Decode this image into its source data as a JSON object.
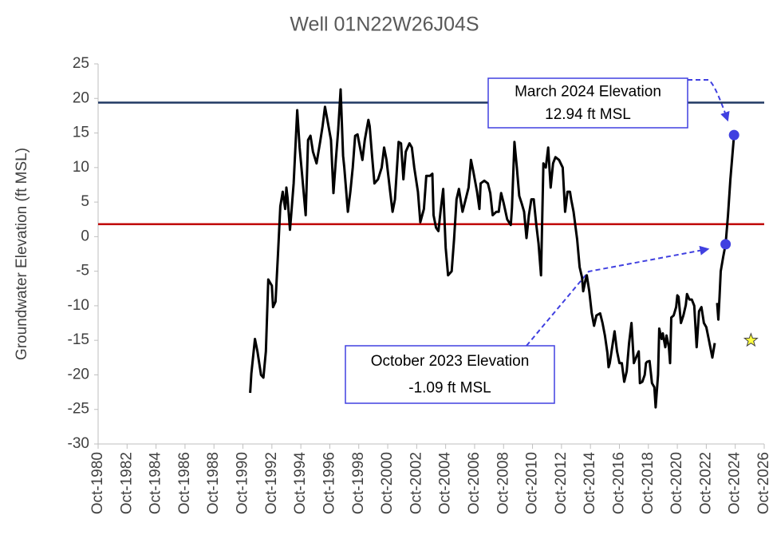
{
  "chart_data": {
    "type": "line",
    "title": "Well 01N22W26J04S",
    "y_label": "Groundwater Elevation (ft MSL)",
    "color": "#000000",
    "xlim": [
      "1980-10",
      "2026-10"
    ],
    "xticks": [
      {
        "value": "1980-10",
        "label": "Oct-1980"
      },
      {
        "value": "1982-10",
        "label": "Oct-1982"
      },
      {
        "value": "1984-10",
        "label": "Oct-1984"
      },
      {
        "value": "1986-10",
        "label": "Oct-1986"
      },
      {
        "value": "1988-10",
        "label": "Oct-1988"
      },
      {
        "value": "1990-10",
        "label": "Oct-1990"
      },
      {
        "value": "1992-10",
        "label": "Oct-1992"
      },
      {
        "value": "1994-10",
        "label": "Oct-1994"
      },
      {
        "value": "1996-10",
        "label": "Oct-1996"
      },
      {
        "value": "1998-10",
        "label": "Oct-1998"
      },
      {
        "value": "2000-10",
        "label": "Oct-2000"
      },
      {
        "value": "2002-10",
        "label": "Oct-2002"
      },
      {
        "value": "2004-10",
        "label": "Oct-2004"
      },
      {
        "value": "2006-10",
        "label": "Oct-2006"
      },
      {
        "value": "2008-10",
        "label": "Oct-2008"
      },
      {
        "value": "2010-10",
        "label": "Oct-2010"
      },
      {
        "value": "2012-10",
        "label": "Oct-2012"
      },
      {
        "value": "2014-10",
        "label": "Oct-2014"
      },
      {
        "value": "2016-10",
        "label": "Oct-2016"
      },
      {
        "value": "2018-10",
        "label": "Oct-2018"
      },
      {
        "value": "2020-10",
        "label": "Oct-2020"
      },
      {
        "value": "2022-10",
        "label": "Oct-2022"
      },
      {
        "value": "2024-10",
        "label": "Oct-2024"
      },
      {
        "value": "2026-10",
        "label": "Oct-2026"
      }
    ],
    "ylim": [
      -30,
      25
    ],
    "yticks": [
      -30,
      -25,
      -20,
      -15,
      -10,
      -5,
      0,
      5,
      10,
      15,
      20,
      25
    ],
    "reference_lines": [
      {
        "value": 19.4,
        "color": "#203864"
      },
      {
        "value": 1.8,
        "color": "#c00000"
      }
    ],
    "x": [
      "1991-04",
      "1991-05",
      "1991-08",
      "1991-10",
      "1992-01",
      "1992-03",
      "1992-05",
      "1992-07",
      "1992-09",
      "1992-10",
      "1992-11",
      "1993-01",
      "1993-03",
      "1993-05",
      "1993-07",
      "1993-09",
      "1993-10",
      "1993-11",
      "1994-01",
      "1994-02",
      "1994-04",
      "1994-07",
      "1994-09",
      "1994-11",
      "1995-02",
      "1995-04",
      "1995-06",
      "1995-08",
      "1995-11",
      "1996-02",
      "1996-04",
      "1996-06",
      "1996-08",
      "1996-11",
      "1997-01",
      "1997-03",
      "1997-05",
      "1997-07",
      "1997-09",
      "1997-10",
      "1998-01",
      "1998-03",
      "1998-05",
      "1998-07",
      "1998-09",
      "1998-11",
      "1999-01",
      "1999-03",
      "1999-06",
      "1999-07",
      "1999-09",
      "1999-11",
      "2000-02",
      "2000-05",
      "2000-07",
      "2000-09",
      "2000-12",
      "2001-02",
      "2001-04",
      "2001-07",
      "2001-09",
      "2001-11",
      "2002-01",
      "2002-04",
      "2002-06",
      "2002-08",
      "2002-11",
      "2003-01",
      "2003-04",
      "2003-06",
      "2003-09",
      "2003-11",
      "2003-12",
      "2004-02",
      "2004-04",
      "2004-06",
      "2004-08",
      "2004-10",
      "2004-12",
      "2005-03",
      "2005-05",
      "2005-07",
      "2005-09",
      "2005-12",
      "2006-03",
      "2006-05",
      "2006-07",
      "2006-09",
      "2006-12",
      "2007-02",
      "2007-03",
      "2007-06",
      "2007-09",
      "2007-11",
      "2008-01",
      "2008-04",
      "2008-06",
      "2008-08",
      "2008-10",
      "2009-01",
      "2009-04",
      "2009-05",
      "2009-07",
      "2009-09",
      "2009-11",
      "2010-01",
      "2010-03",
      "2010-05",
      "2010-07",
      "2010-09",
      "2010-11",
      "2011-01",
      "2011-03",
      "2011-05",
      "2011-07",
      "2011-09",
      "2011-11",
      "2012-01",
      "2012-03",
      "2012-05",
      "2012-08",
      "2012-11",
      "2013-01",
      "2013-03",
      "2013-05",
      "2013-06",
      "2013-08",
      "2013-11",
      "2014-01",
      "2014-03",
      "2014-04",
      "2014-06",
      "2014-07",
      "2014-09",
      "2014-11",
      "2015-01",
      "2015-03",
      "2015-06",
      "2015-08",
      "2015-10",
      "2015-12",
      "2016-01",
      "2016-02",
      "2016-04",
      "2016-06",
      "2016-08",
      "2016-10",
      "2016-12",
      "2017-02",
      "2017-04",
      "2017-06",
      "2017-08",
      "2017-10",
      "2017-12",
      "2018-02",
      "2018-03",
      "2018-05",
      "2018-07",
      "2018-08",
      "2018-09",
      "2018-11",
      "2019-01",
      "2019-03",
      "2019-04",
      "2019-06",
      "2019-07",
      "2019-09",
      "2019-10",
      "2019-12",
      "2020-01",
      "2020-03",
      "2020-04",
      "2020-05",
      "2020-07",
      "2020-09",
      "2020-10",
      "2020-11",
      "2021-01",
      "2021-03",
      "2021-05",
      "2021-06",
      "2021-08",
      "2021-10",
      "2021-12",
      "2022-02",
      "2022-04",
      "2022-06",
      "2022-08",
      "2022-10",
      "2022-12",
      "2023-03",
      "2023-05",
      "2023-06",
      "2023-07",
      "2023-08",
      "2023-09",
      "2023-10",
      "2023-12",
      "2024-02",
      "2024-04",
      "2024-06",
      "2024-09"
    ],
    "values": [
      -22.6,
      -19.8,
      -14.8,
      -16.6,
      -20.0,
      -20.4,
      -16.6,
      -6.2,
      -6.8,
      -7.1,
      -10.2,
      -9.4,
      -2.7,
      4.4,
      6.5,
      4.0,
      7.1,
      5.6,
      1.0,
      3.1,
      7.7,
      18.3,
      12.9,
      9.1,
      3.1,
      14.0,
      14.6,
      12.3,
      10.6,
      13.7,
      16.0,
      18.8,
      16.9,
      14.0,
      6.3,
      11.1,
      15.5,
      21.3,
      11.7,
      10.0,
      3.6,
      6.5,
      10.0,
      14.6,
      14.8,
      12.9,
      11.1,
      14.0,
      16.9,
      16.0,
      11.7,
      7.7,
      8.3,
      10.0,
      12.9,
      11.1,
      6.5,
      3.6,
      5.4,
      13.7,
      13.5,
      8.3,
      12.3,
      13.5,
      12.9,
      10.0,
      6.5,
      2.1,
      4.0,
      8.8,
      8.8,
      9.1,
      3.1,
      1.3,
      0.8,
      4.0,
      6.9,
      -1.6,
      -5.6,
      -5.0,
      -0.4,
      5.4,
      6.9,
      3.6,
      5.7,
      7.1,
      11.1,
      9.4,
      6.5,
      4.0,
      7.7,
      8.1,
      7.7,
      6.3,
      3.1,
      3.6,
      3.6,
      6.3,
      4.9,
      2.5,
      1.7,
      4.2,
      13.7,
      10.0,
      5.9,
      4.8,
      3.6,
      -0.2,
      3.1,
      5.4,
      5.4,
      1.9,
      -1.0,
      -5.6,
      10.6,
      10.0,
      12.9,
      7.1,
      10.6,
      11.5,
      11.1,
      10.0,
      3.6,
      6.5,
      6.5,
      5.4,
      3.6,
      -0.4,
      -4.4,
      -5.9,
      -7.9,
      -6.2,
      -5.6,
      -7.9,
      -11.0,
      -12.9,
      -11.4,
      -11.1,
      -12.5,
      -14.3,
      -16.8,
      -18.9,
      -18.3,
      -16.0,
      -13.7,
      -16.6,
      -18.3,
      -18.3,
      -21.0,
      -19.5,
      -15.4,
      -12.5,
      -18.3,
      -17.4,
      -16.6,
      -21.2,
      -21.0,
      -20.0,
      -18.3,
      -18.1,
      -18.0,
      -21.2,
      -21.8,
      -24.7,
      -20.0,
      -13.3,
      -14.8,
      -14.0,
      -16.0,
      -14.3,
      -16.0,
      -18.3,
      -11.7,
      -11.4,
      -10.2,
      -8.5,
      -8.7,
      -12.5,
      -11.4,
      -9.9,
      -8.3,
      -9.1,
      -9.1,
      -10.0,
      -16.0,
      -10.8,
      -10.2,
      -12.5,
      -13.1,
      -14.8,
      -17.5,
      -15.4,
      null,
      -9.6,
      -12.0,
      -8.7,
      -5.0,
      -2.9,
      -1.1,
      3.1,
      8.3,
      14.7
    ],
    "markers": [
      {
        "x": "2024-02",
        "value": -1.1,
        "color": "#4040e0",
        "shape": "circle"
      },
      {
        "x": "2024-09",
        "value": 14.7,
        "color": "#4040e0",
        "shape": "circle"
      },
      {
        "x": "2025-11",
        "value": -15,
        "color": "#ffff40",
        "shape": "star"
      }
    ],
    "annotations": [
      {
        "lines": [
          "March 2024 Elevation",
          "12.94 ft MSL"
        ]
      },
      {
        "lines": [
          "October 2023 Elevation",
          "-1.09 ft MSL"
        ]
      }
    ]
  }
}
